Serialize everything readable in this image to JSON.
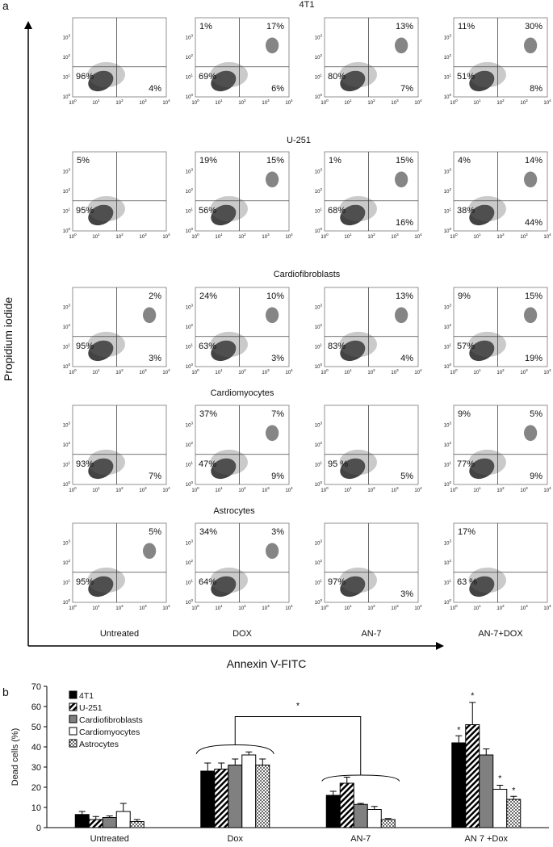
{
  "panel_labels": [
    "a",
    "b"
  ],
  "figure_a": {
    "y_axis_label": "Propidium iodide",
    "x_axis_label": "Annexin V-FITC",
    "columns": [
      "Untreated",
      "DOX",
      "AN-7",
      "AN-7+DOX"
    ],
    "log_ticks": [
      {
        "base": "10",
        "exp": "0"
      },
      {
        "base": "10",
        "exp": "1"
      },
      {
        "base": "10",
        "exp": "2"
      },
      {
        "base": "10",
        "exp": "3"
      },
      {
        "base": "10",
        "exp": "4"
      }
    ],
    "rows": [
      {
        "title": "4T1",
        "plots": [
          {
            "LL": "96%",
            "LR": "4%"
          },
          {
            "UL": "1%",
            "UR": "17%",
            "LL": "69%",
            "LR": "6%"
          },
          {
            "UR": "13%",
            "LL": "80%",
            "LR": "7%"
          },
          {
            "UL": "11%",
            "UR": "30%",
            "LL": "51%",
            "LR": "8%"
          }
        ]
      },
      {
        "title": "U-251",
        "plots": [
          {
            "UL": "5%",
            "LL": "95%"
          },
          {
            "UL": "19%",
            "UR": "15%",
            "LL": "56%"
          },
          {
            "UL": "1%",
            "UR": "15%",
            "LL": "68%",
            "LR": "16%"
          },
          {
            "UL": "4%",
            "UR": "14%",
            "LL": "38%",
            "LR": "44%"
          }
        ]
      },
      {
        "title": "Cardiofibroblasts",
        "plots": [
          {
            "UR": "2%",
            "LL": "95%",
            "LR": "3%"
          },
          {
            "UL": "24%",
            "UR": "10%",
            "LL": "63%",
            "LR": "3%"
          },
          {
            "UR": "13%",
            "LL": "83%",
            "LR": "4%"
          },
          {
            "UL": "9%",
            "UR": "15%",
            "LL": "57%",
            "LR": "19%"
          }
        ]
      },
      {
        "title": "Cardiomyocytes",
        "plots": [
          {
            "LL": "93%",
            "LR": "7%"
          },
          {
            "UL": "37%",
            "UR": "7%",
            "LL": "47%",
            "LR": "9%"
          },
          {
            "LL": "95 %",
            "LR": "5%"
          },
          {
            "UL": "9%",
            "UR": "5%",
            "LL": "77%",
            "LR": "9%"
          }
        ]
      },
      {
        "title": "Astrocytes",
        "plots": [
          {
            "UR": "5%",
            "LL": "95%"
          },
          {
            "UL": "34%",
            "UR": "3%",
            "LL": "64%"
          },
          {
            "LL": "97%",
            "LR": "3%"
          },
          {
            "UL": "17%",
            "LL": "63 %"
          }
        ]
      }
    ]
  },
  "chart_data": {
    "type": "bar",
    "y_label": "Dead cells (%)",
    "categories": [
      "Untreated",
      "Dox",
      "AN-7",
      "AN 7  +Dox"
    ],
    "ylim": [
      0,
      70
    ],
    "yticks": [
      0,
      10,
      20,
      30,
      40,
      50,
      60,
      70
    ],
    "legend": "upper left",
    "series": [
      {
        "name": "4T1",
        "color": "#000000",
        "pattern": "solid",
        "values": [
          6.5,
          28,
          16,
          42
        ],
        "errors": [
          1.5,
          4,
          2,
          3.5
        ]
      },
      {
        "name": "U-251",
        "color": "#000000",
        "pattern": "hatch",
        "values": [
          4,
          29,
          22,
          51
        ],
        "errors": [
          1.5,
          3,
          3,
          11
        ]
      },
      {
        "name": "Cardiofibroblasts",
        "color": "#808080",
        "pattern": "solid",
        "values": [
          5,
          31,
          11.5,
          36
        ],
        "errors": [
          0.8,
          3,
          0.5,
          3
        ]
      },
      {
        "name": "Cardiomyocytes",
        "color": "#ffffff",
        "pattern": "solid",
        "values": [
          8,
          36,
          9,
          19
        ],
        "errors": [
          4,
          1.5,
          1.5,
          2
        ]
      },
      {
        "name": "Astrocytes",
        "color": "#000000",
        "pattern": "dots",
        "values": [
          3,
          31,
          4,
          14
        ],
        "errors": [
          1,
          3,
          0.5,
          1.5
        ]
      }
    ],
    "annotations": [
      "*",
      "*",
      "*",
      "*",
      "*"
    ]
  }
}
